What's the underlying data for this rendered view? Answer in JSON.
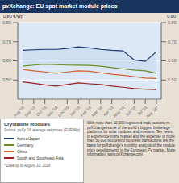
{
  "chart_data": {
    "type": "line",
    "title": "pvXchange: EU spot market module prices",
    "categories": [
      "Aug '15",
      "Sep '15",
      "Oct '15",
      "Nov '15",
      "Dec '15",
      "Jan '16",
      "Feb '16",
      "Mar '16",
      "Apr '16",
      "May '16",
      "Jun '16",
      "Jul '16",
      "Aug '16*"
    ],
    "series": [
      {
        "name": "Korea/Japan",
        "color": "#1e3a6e",
        "values": [
          0.655,
          0.658,
          0.66,
          0.66,
          0.665,
          0.673,
          0.668,
          0.66,
          0.655,
          0.652,
          0.605,
          0.597,
          0.648
        ]
      },
      {
        "name": "Germany",
        "color": "#6b8c23",
        "values": [
          0.572,
          0.578,
          0.582,
          0.58,
          0.578,
          0.577,
          0.576,
          0.572,
          0.565,
          0.558,
          0.552,
          0.548,
          0.535
        ]
      },
      {
        "name": "China",
        "color": "#d4612a",
        "values": [
          0.555,
          0.548,
          0.542,
          0.535,
          0.542,
          0.548,
          0.546,
          0.538,
          0.53,
          0.525,
          0.518,
          0.51,
          0.508
        ]
      },
      {
        "name": "South and Southeast Asia",
        "color": "#9b2020",
        "values": [
          0.49,
          0.483,
          0.474,
          0.468,
          0.476,
          0.485,
          0.48,
          0.476,
          0.468,
          0.462,
          0.455,
          0.452,
          0.45
        ]
      }
    ],
    "ylim": [
      0.4,
      0.8
    ],
    "yticks": [
      {
        "value": 0.5,
        "label": "0.50"
      },
      {
        "value": 0.6,
        "label": "0.60"
      },
      {
        "value": 0.7,
        "label": "0.70"
      },
      {
        "value": 0.8,
        "label": "0.80"
      }
    ],
    "y2lim": [
      0.4,
      0.8
    ],
    "y2ticks": [
      {
        "value": 0.5,
        "label": "0.50"
      },
      {
        "value": 0.6,
        "label": "0.60"
      },
      {
        "value": 0.7,
        "label": "0.70"
      },
      {
        "value": 0.8,
        "label": "0.80"
      }
    ],
    "grid": true,
    "legend": "bottom left",
    "fill_between": {
      "series": [
        "Korea/Japan",
        "Germany"
      ],
      "color": "#c5d8ee"
    },
    "y_label": "0.80 €/Wp",
    "y2_label": "0.80",
    "legend_title": "Crystalline modules",
    "source": "Source: pvXy '16 average net prices (EUR/Wp)",
    "footnote": "* Data up to August 10, 2016",
    "text": "With more than 10,000 registered trade customers, pvXchange is one of the world's biggest brokerage platforms for solar modules and inverters. Ten years of experience in the market and the expertise of more than 30,000 successful business transactions are the basis for pvXchange's monthly analysis of the module price developments in the European PV market. More information: www.pvXchange.com",
    "plot_background": "#dce8f5",
    "background": "#e8e0d5",
    "title_background": "#1a3560",
    "title_color": "#ffffff"
  }
}
